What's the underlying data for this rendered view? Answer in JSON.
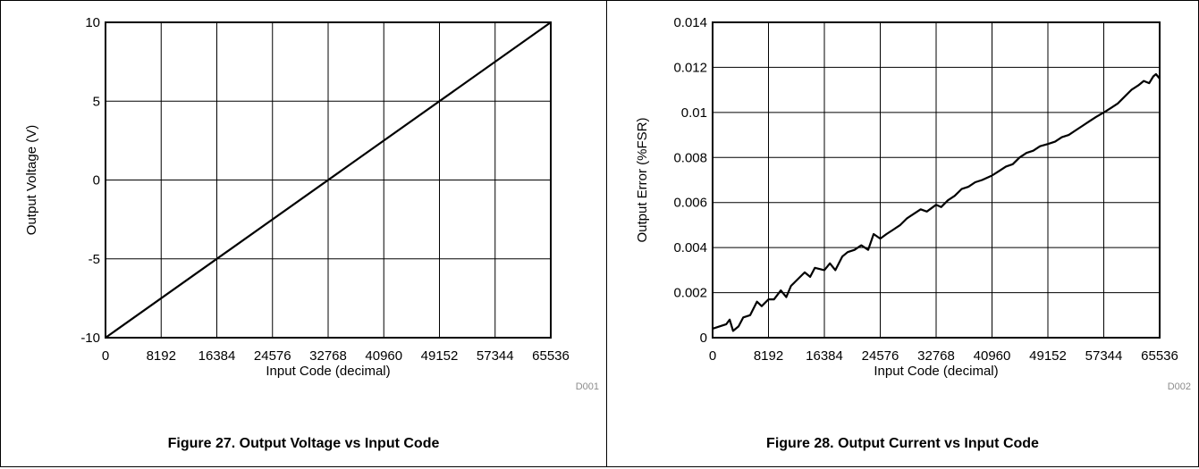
{
  "chart_data": [
    {
      "type": "line",
      "caption": "Figure 27. Output Voltage vs Input Code",
      "code": "D001",
      "xlabel": "Input Code (decimal)",
      "ylabel": "Output Voltage (V)",
      "xlim": [
        0,
        65536
      ],
      "ylim": [
        -10,
        10
      ],
      "xticks": [
        0,
        8192,
        16384,
        24576,
        32768,
        40960,
        49152,
        57344,
        65536
      ],
      "xtick_labels": [
        "0",
        "8192",
        "16384",
        "24576",
        "32768",
        "40960",
        "49152",
        "57344",
        "65536"
      ],
      "yticks": [
        -10,
        -5,
        0,
        5,
        10
      ],
      "ytick_labels": [
        "-10",
        "-5",
        "0",
        "5",
        "10"
      ],
      "grid": true,
      "series": [
        {
          "x": [
            0,
            65536
          ],
          "y": [
            -10,
            10
          ]
        }
      ]
    },
    {
      "type": "line",
      "caption": "Figure 28. Output Current vs Input Code",
      "code": "D002",
      "xlabel": "Input Code (decimal)",
      "ylabel": "Output Error (%FSR)",
      "xlim": [
        0,
        65536
      ],
      "ylim": [
        0,
        0.014
      ],
      "xticks": [
        0,
        8192,
        16384,
        24576,
        32768,
        40960,
        49152,
        57344,
        65536
      ],
      "xtick_labels": [
        "0",
        "8192",
        "16384",
        "24576",
        "32768",
        "40960",
        "49152",
        "57344",
        "65536"
      ],
      "yticks": [
        0,
        0.002,
        0.004,
        0.006,
        0.008,
        0.01,
        0.012,
        0.014
      ],
      "ytick_labels": [
        "0",
        "0.002",
        "0.004",
        "0.006",
        "0.008",
        "0.01",
        "0.012",
        "0.014"
      ],
      "grid": true,
      "series": [
        {
          "x": [
            0,
            1000,
            2000,
            2500,
            3000,
            3800,
            4500,
            5500,
            6500,
            7200,
            8192,
            9000,
            10000,
            10800,
            11500,
            12500,
            13500,
            14300,
            15000,
            16384,
            17200,
            18000,
            19000,
            19800,
            20800,
            21800,
            22800,
            23600,
            24576,
            25500,
            26500,
            27500,
            28500,
            29500,
            30500,
            31400,
            32768,
            33500,
            34500,
            35500,
            36500,
            37500,
            38500,
            39500,
            40960,
            42000,
            43000,
            44000,
            45000,
            46000,
            47000,
            48000,
            49152,
            50200,
            51200,
            52200,
            53200,
            54200,
            55200,
            56200,
            57344,
            58400,
            59400,
            60400,
            61400,
            62400,
            63200,
            64000,
            64600,
            65000,
            65536
          ],
          "y": [
            0.0004,
            0.0005,
            0.0006,
            0.0008,
            0.0003,
            0.0005,
            0.0009,
            0.001,
            0.0016,
            0.0014,
            0.0017,
            0.0017,
            0.0021,
            0.0018,
            0.0023,
            0.0026,
            0.0029,
            0.0027,
            0.0031,
            0.003,
            0.0033,
            0.003,
            0.0036,
            0.0038,
            0.0039,
            0.0041,
            0.0039,
            0.0046,
            0.0044,
            0.0046,
            0.0048,
            0.005,
            0.0053,
            0.0055,
            0.0057,
            0.0056,
            0.0059,
            0.0058,
            0.0061,
            0.0063,
            0.0066,
            0.0067,
            0.0069,
            0.007,
            0.0072,
            0.0074,
            0.0076,
            0.0077,
            0.008,
            0.0082,
            0.0083,
            0.0085,
            0.0086,
            0.0087,
            0.0089,
            0.009,
            0.0092,
            0.0094,
            0.0096,
            0.0098,
            0.01,
            0.0102,
            0.0104,
            0.0107,
            0.011,
            0.0112,
            0.0114,
            0.0113,
            0.0116,
            0.0117,
            0.0115
          ]
        }
      ]
    }
  ]
}
